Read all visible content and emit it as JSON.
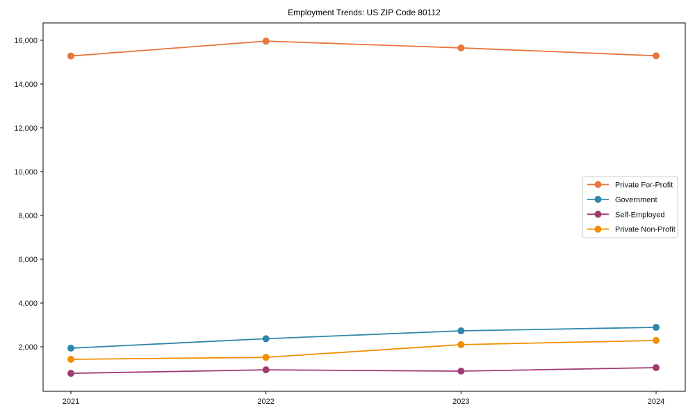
{
  "chart_data": {
    "type": "line",
    "title": "Employment Trends: US ZIP Code 80112",
    "xlabel": "",
    "ylabel": "",
    "grid": false,
    "legend_position": "center-right",
    "marker": "circle",
    "x_categories": [
      "2021",
      "2022",
      "2023",
      "2024"
    ],
    "y_axis": {
      "min": -30,
      "max": 16790,
      "ticks": [
        {
          "value": 2000,
          "label": "2,000"
        },
        {
          "value": 4000,
          "label": "4,000"
        },
        {
          "value": 6000,
          "label": "6,000"
        },
        {
          "value": 8000,
          "label": "8,000"
        },
        {
          "value": 10000,
          "label": "10,000"
        },
        {
          "value": 12000,
          "label": "12,000"
        },
        {
          "value": 14000,
          "label": "14,000"
        },
        {
          "value": 16000,
          "label": "16,000"
        }
      ]
    },
    "series": [
      {
        "name": "Private For-Profit",
        "color": "#E8763B",
        "values": [
          15280,
          15960,
          15650,
          15290
        ]
      },
      {
        "name": "Government",
        "color": "#2E86AB",
        "values": [
          1940,
          2370,
          2730,
          2890
        ]
      },
      {
        "name": "Self-Employed",
        "color": "#A23B72",
        "values": [
          790,
          950,
          890,
          1050
        ]
      },
      {
        "name": "Private Non-Profit",
        "color": "#F18F01",
        "values": [
          1430,
          1520,
          2100,
          2290
        ]
      }
    ]
  }
}
